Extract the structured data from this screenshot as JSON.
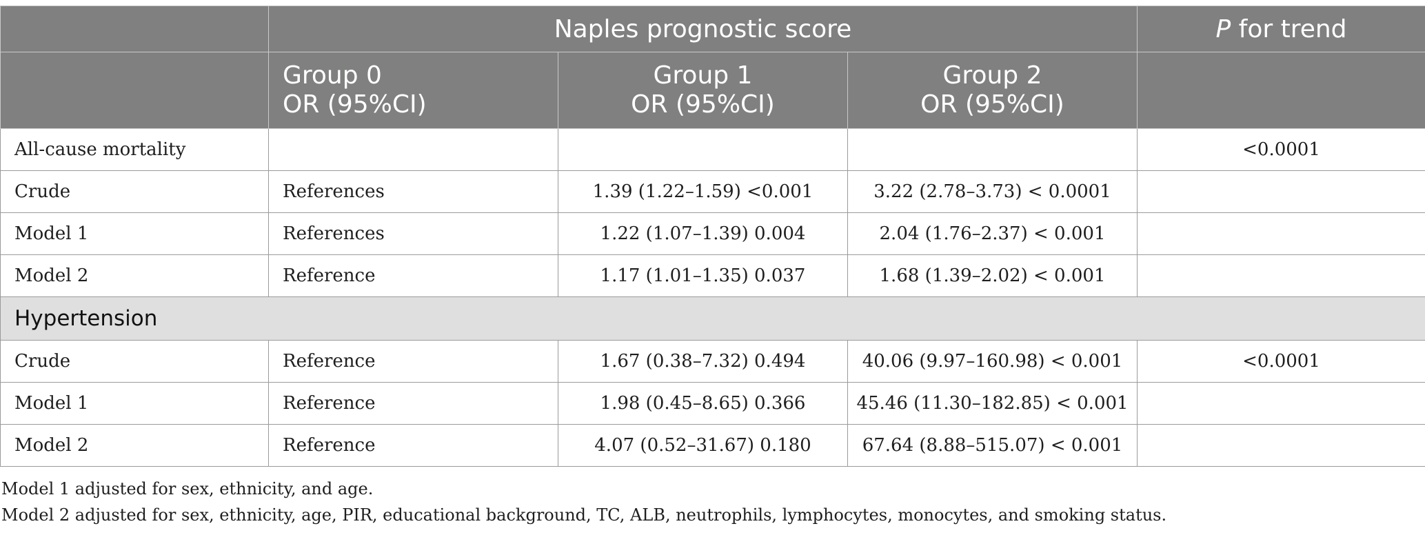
{
  "header": {
    "group_title": "Naples prognostic score",
    "p_trend_italic": "P",
    "p_trend_rest": " for trend",
    "groups": [
      {
        "name": "Group 0",
        "sub": "OR (95%CI)"
      },
      {
        "name": "Group 1",
        "sub": "OR (95%CI)"
      },
      {
        "name": "Group 2",
        "sub": "OR (95%CI)"
      }
    ]
  },
  "rows": {
    "acm": {
      "label": "All-cause mortality",
      "g0": "",
      "g1": "",
      "g2": "",
      "p": "<0.0001"
    },
    "acm_crude": {
      "label": "Crude",
      "g0": "References",
      "g1": "1.39 (1.22–1.59) <0.001",
      "g2": "3.22 (2.78–3.73) < 0.0001",
      "p": ""
    },
    "acm_m1": {
      "label": "Model 1",
      "g0": "References",
      "g1": "1.22 (1.07–1.39) 0.004",
      "g2": "2.04 (1.76–2.37) < 0.001",
      "p": ""
    },
    "acm_m2": {
      "label": "Model 2",
      "g0": "Reference",
      "g1": "1.17 (1.01–1.35) 0.037",
      "g2": "1.68 (1.39–2.02) < 0.001",
      "p": ""
    },
    "htn_section": "Hypertension",
    "htn_crude": {
      "label": "Crude",
      "g0": "Reference",
      "g1": "1.67 (0.38–7.32) 0.494",
      "g2": "40.06 (9.97–160.98) < 0.001",
      "p": "<0.0001"
    },
    "htn_m1": {
      "label": "Model 1",
      "g0": "Reference",
      "g1": "1.98 (0.45–8.65) 0.366",
      "g2": "45.46 (11.30–182.85) < 0.001",
      "p": ""
    },
    "htn_m2": {
      "label": "Model 2",
      "g0": "Reference",
      "g1": "4.07 (0.52–31.67) 0.180",
      "g2": "67.64 (8.88–515.07) < 0.001",
      "p": ""
    }
  },
  "notes": [
    "Model 1 adjusted for sex, ethnicity, and age.",
    "Model 2 adjusted for sex, ethnicity, age, PIR, educational background, TC, ALB, neutrophils, lymphocytes, monocytes, and smoking status."
  ]
}
